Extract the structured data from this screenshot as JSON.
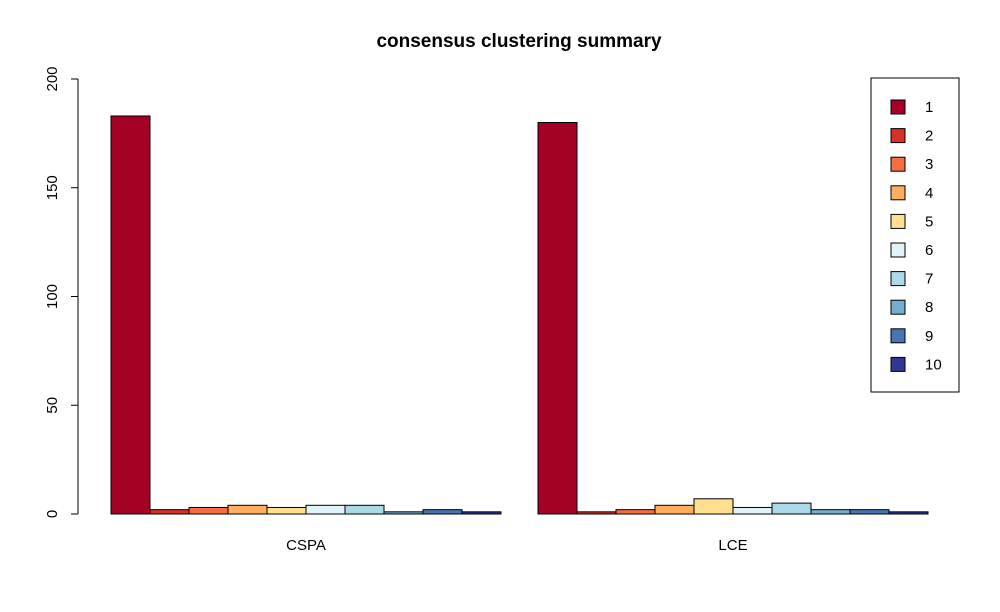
{
  "chart_data": {
    "type": "bar",
    "title": "consensus clustering summary",
    "xlabel": "",
    "ylabel": "",
    "categories": [
      "CSPA",
      "LCE"
    ],
    "ylim": [
      0,
      200
    ],
    "yticks": [
      0,
      50,
      100,
      150,
      200
    ],
    "grid": false,
    "legend_position": "top-right",
    "series": [
      {
        "name": "1",
        "color": "#A50026",
        "values": [
          183,
          180
        ]
      },
      {
        "name": "2",
        "color": "#D73027",
        "values": [
          2,
          1
        ]
      },
      {
        "name": "3",
        "color": "#F46D43",
        "values": [
          3,
          2
        ]
      },
      {
        "name": "4",
        "color": "#FDAE61",
        "values": [
          4,
          4
        ]
      },
      {
        "name": "5",
        "color": "#FEE090",
        "values": [
          3,
          7
        ]
      },
      {
        "name": "6",
        "color": "#E0F3F8",
        "values": [
          4,
          3
        ]
      },
      {
        "name": "7",
        "color": "#ABD9E9",
        "values": [
          4,
          5
        ]
      },
      {
        "name": "8",
        "color": "#74ADD1",
        "values": [
          1,
          2
        ]
      },
      {
        "name": "9",
        "color": "#4575B4",
        "values": [
          2,
          2
        ]
      },
      {
        "name": "10",
        "color": "#313695",
        "values": [
          1,
          1
        ]
      }
    ]
  }
}
